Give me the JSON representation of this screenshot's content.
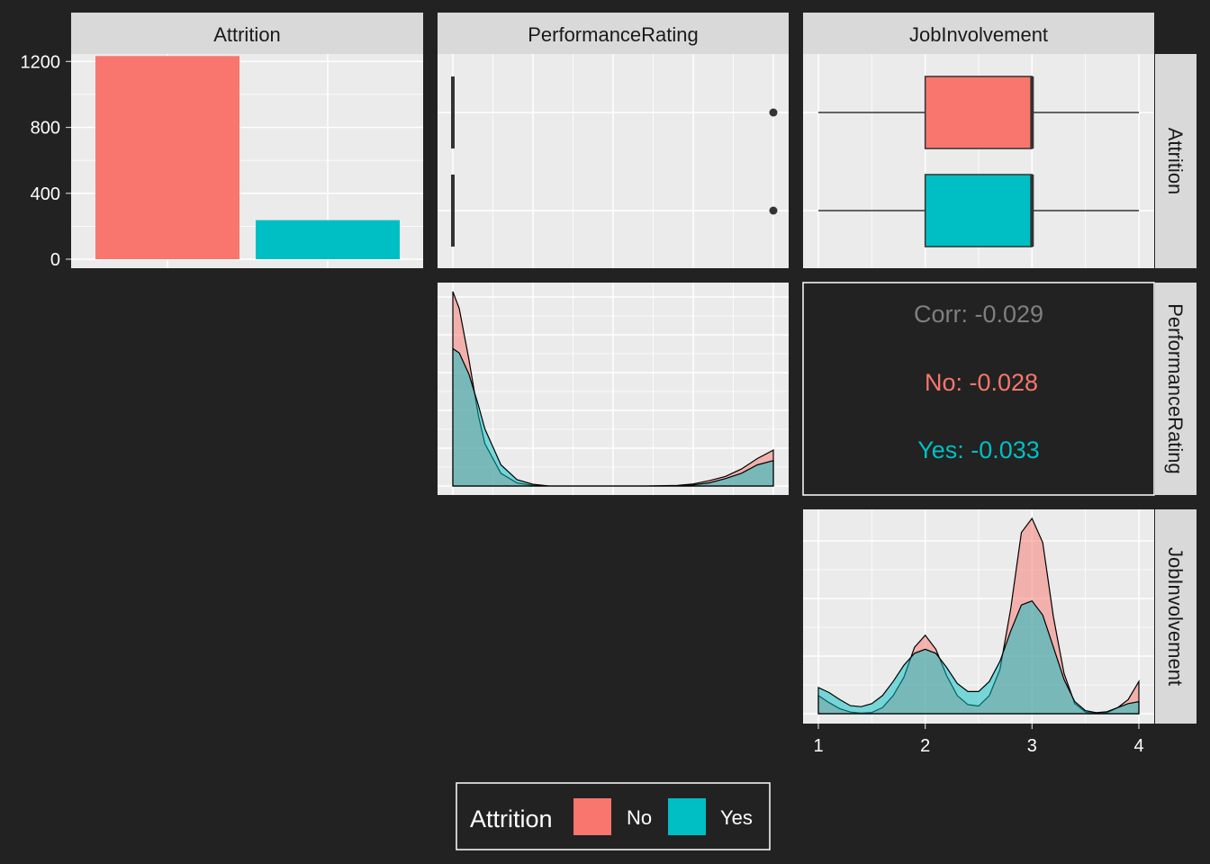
{
  "colors": {
    "background": "#222222",
    "panel": "#EBEBEB",
    "strip": "#D9D9D9",
    "grid": "#FFFFFF",
    "no": "#F8766D",
    "yes": "#00BFC4",
    "corr_overall": "#7F7F7F"
  },
  "panels": {
    "col_strips": [
      "Attrition",
      "PerformanceRating",
      "JobInvolvement"
    ],
    "row_strips": [
      "Attrition",
      "PerformanceRating",
      "JobInvolvement"
    ]
  },
  "chart_data": [
    {
      "panel": "Attrition",
      "type": "bar",
      "categories": [
        "No",
        "Yes"
      ],
      "values": [
        1233,
        237
      ],
      "ylim": [
        0,
        1300
      ],
      "yticks": [
        0,
        400,
        800,
        1200
      ],
      "ytick_labels": [
        "0",
        "400",
        "800",
        "1200"
      ]
    },
    {
      "panel": "PerformanceRating vs Attrition",
      "type": "boxplot",
      "orientation": "horizontal",
      "xlim": [
        3,
        4
      ],
      "groups": [
        {
          "name": "No",
          "min": 3,
          "q1": 3,
          "median": 3,
          "q3": 3,
          "max": 3,
          "outliers": [
            4
          ]
        },
        {
          "name": "Yes",
          "min": 3,
          "q1": 3,
          "median": 3,
          "q3": 3,
          "max": 3,
          "outliers": [
            4
          ]
        }
      ]
    },
    {
      "panel": "JobInvolvement vs Attrition",
      "type": "boxplot",
      "orientation": "horizontal",
      "xlim": [
        1,
        4
      ],
      "groups": [
        {
          "name": "No",
          "min": 1,
          "q1": 2,
          "median": 3,
          "q3": 3,
          "max": 4,
          "outliers": []
        },
        {
          "name": "Yes",
          "min": 1,
          "q1": 2,
          "median": 3,
          "q3": 3,
          "max": 4,
          "outliers": []
        }
      ]
    },
    {
      "panel": "PerformanceRating density",
      "type": "area",
      "xlim": [
        3,
        4
      ],
      "series": [
        {
          "name": "No",
          "x": [
            3.0,
            3.02,
            3.05,
            3.08,
            3.1,
            3.15,
            3.2,
            3.25,
            3.3,
            3.4,
            3.5,
            3.6,
            3.7,
            3.75,
            3.8,
            3.85,
            3.9,
            3.95,
            4.0
          ],
          "y": [
            0.92,
            0.84,
            0.6,
            0.33,
            0.2,
            0.06,
            0.015,
            0.003,
            0.0,
            0.0,
            0.0,
            0.0,
            0.003,
            0.01,
            0.025,
            0.045,
            0.08,
            0.13,
            0.17
          ]
        },
        {
          "name": "Yes",
          "x": [
            3.0,
            3.02,
            3.05,
            3.08,
            3.1,
            3.15,
            3.2,
            3.25,
            3.3,
            3.4,
            3.5,
            3.6,
            3.7,
            3.75,
            3.8,
            3.85,
            3.9,
            3.95,
            4.0
          ],
          "y": [
            0.65,
            0.63,
            0.53,
            0.38,
            0.27,
            0.1,
            0.03,
            0.008,
            0.0,
            0.0,
            0.0,
            0.0,
            0.0,
            0.005,
            0.015,
            0.035,
            0.06,
            0.1,
            0.12
          ]
        }
      ]
    },
    {
      "panel": "PerformanceRating vs JobInvolvement",
      "type": "table",
      "lines": [
        {
          "key": "overall",
          "text": "Corr: -0.029"
        },
        {
          "key": "no",
          "text": "No: -0.028"
        },
        {
          "key": "yes",
          "text": "Yes: -0.033"
        }
      ]
    },
    {
      "panel": "JobInvolvement density",
      "type": "area",
      "xlim": [
        1,
        4
      ],
      "xticks": [
        1,
        2,
        3,
        4
      ],
      "xtick_labels": [
        "1",
        "2",
        "3",
        "4"
      ],
      "series": [
        {
          "name": "No",
          "x": [
            1.0,
            1.1,
            1.2,
            1.3,
            1.4,
            1.5,
            1.6,
            1.7,
            1.8,
            1.9,
            2.0,
            2.1,
            2.2,
            2.3,
            2.4,
            2.5,
            2.6,
            2.7,
            2.8,
            2.9,
            3.0,
            3.1,
            3.2,
            3.3,
            3.4,
            3.5,
            3.6,
            3.7,
            3.8,
            3.9,
            4.0
          ],
          "y": [
            0.09,
            0.055,
            0.025,
            0.008,
            0.003,
            0.006,
            0.03,
            0.09,
            0.18,
            0.33,
            0.39,
            0.32,
            0.19,
            0.09,
            0.045,
            0.038,
            0.09,
            0.22,
            0.52,
            0.9,
            0.97,
            0.85,
            0.48,
            0.2,
            0.05,
            0.008,
            0.002,
            0.005,
            0.03,
            0.07,
            0.16
          ]
        },
        {
          "name": "Yes",
          "x": [
            1.0,
            1.1,
            1.2,
            1.3,
            1.4,
            1.5,
            1.6,
            1.7,
            1.8,
            1.9,
            2.0,
            2.1,
            2.2,
            2.3,
            2.4,
            2.5,
            2.6,
            2.7,
            2.8,
            2.9,
            3.0,
            3.1,
            3.2,
            3.3,
            3.4,
            3.5,
            3.6,
            3.7,
            3.8,
            3.9,
            4.0
          ],
          "y": [
            0.13,
            0.105,
            0.07,
            0.04,
            0.035,
            0.05,
            0.09,
            0.16,
            0.24,
            0.3,
            0.32,
            0.3,
            0.23,
            0.15,
            0.11,
            0.11,
            0.16,
            0.26,
            0.41,
            0.54,
            0.56,
            0.49,
            0.33,
            0.17,
            0.06,
            0.015,
            0.005,
            0.01,
            0.03,
            0.05,
            0.06
          ]
        }
      ]
    }
  ],
  "legend": {
    "title": "Attrition",
    "items": [
      {
        "key": "no",
        "label": "No"
      },
      {
        "key": "yes",
        "label": "Yes"
      }
    ]
  }
}
